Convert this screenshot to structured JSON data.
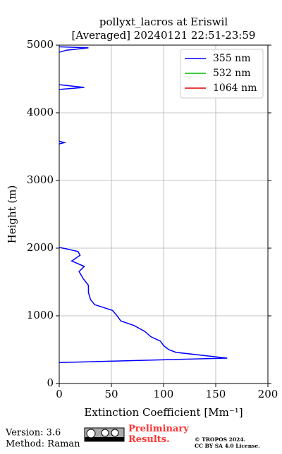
{
  "chart_data": {
    "type": "line",
    "title": "pollyxt_lacros at Eriswil",
    "subtitle": "[Averaged] 20240121 22:51-23:59",
    "x_label": "Extinction Coefficient [Mm⁻¹]",
    "y_label": "Height (m)",
    "heights": [
      310,
      375,
      460,
      500,
      560,
      625,
      690,
      770,
      855,
      925,
      1010,
      1080,
      1165,
      1240,
      1345,
      1450,
      1550,
      1655,
      1730,
      1810,
      1895,
      1950,
      1990,
      2010,
      2050,
      3540,
      3560,
      3580,
      3600,
      4345,
      4375,
      4415,
      4450,
      4895,
      4925,
      4960,
      4975
    ],
    "series": [
      {
        "name": "355 nm",
        "color": "#0000ff",
        "values": [
          0,
          161,
          112,
          105,
          100,
          97,
          88,
          82,
          72,
          59,
          55,
          51,
          34,
          30,
          28,
          28,
          23,
          19,
          24,
          12,
          20,
          18,
          7,
          0,
          null,
          0,
          5,
          0,
          null,
          0,
          24,
          0,
          null,
          0,
          7,
          28,
          0
        ]
      },
      {
        "name": "532 nm",
        "color": "#00bb00",
        "values": [
          null,
          null,
          null,
          null,
          null,
          null,
          null,
          null,
          null,
          null,
          null,
          null,
          null,
          null,
          null,
          null,
          null,
          null,
          null,
          null,
          null,
          null,
          null,
          null,
          null,
          null,
          null,
          null,
          null,
          null,
          null,
          null,
          null,
          null,
          null,
          null,
          null
        ]
      },
      {
        "name": "1064 nm",
        "color": "#dd0000",
        "values": [
          null,
          null,
          null,
          null,
          null,
          null,
          null,
          null,
          null,
          null,
          null,
          null,
          null,
          null,
          null,
          null,
          null,
          null,
          null,
          null,
          null,
          null,
          null,
          null,
          null,
          null,
          null,
          null,
          null,
          null,
          null,
          null,
          null,
          null,
          null,
          null,
          null
        ]
      }
    ],
    "xlim": [
      0,
      200
    ],
    "xticks": [
      0,
      50,
      100,
      150,
      200
    ],
    "ylim": [
      0,
      5000
    ],
    "yticks": [
      0,
      1000,
      2000,
      3000,
      4000,
      5000
    ],
    "grid": true,
    "legend": "upper right"
  },
  "footer": {
    "version": "Version: 3.6",
    "method": "Method: Raman",
    "notice": "Preliminary Results.",
    "copyright": "© TROPOS 2024.",
    "license": "CC BY SA 4.0 License."
  }
}
